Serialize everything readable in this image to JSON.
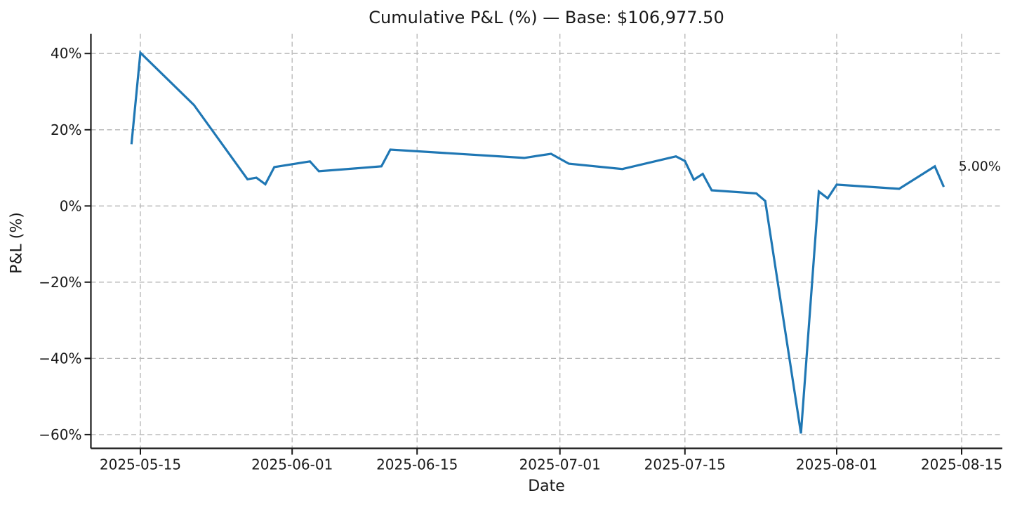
{
  "chart_data": {
    "type": "line",
    "title": "Cumulative P&L (%) — Base: $106,977.50",
    "xlabel": "Date",
    "ylabel": "P&L (%)",
    "x_tick_labels": [
      "2025-05-15",
      "2025-06-01",
      "2025-06-15",
      "2025-07-01",
      "2025-07-15",
      "2025-08-01",
      "2025-08-15"
    ],
    "y_ticks": [
      {
        "value": 40,
        "label": "40%"
      },
      {
        "value": 20,
        "label": "20%"
      },
      {
        "value": 0,
        "label": "0%"
      },
      {
        "value": -20,
        "label": "−20%"
      },
      {
        "value": -40,
        "label": "−40%"
      },
      {
        "value": -60,
        "label": "−60%"
      }
    ],
    "series": [
      {
        "name": "Cumulative P&L (%)",
        "color": "#1f77b4",
        "points": [
          [
            "2025-05-14",
            16.2
          ],
          [
            "2025-05-15",
            40.2
          ],
          [
            "2025-05-21",
            26.5
          ],
          [
            "2025-05-27",
            7.0
          ],
          [
            "2025-05-28",
            7.4
          ],
          [
            "2025-05-29",
            5.7
          ],
          [
            "2025-05-30",
            10.2
          ],
          [
            "2025-06-03",
            11.7
          ],
          [
            "2025-06-04",
            9.1
          ],
          [
            "2025-06-11",
            10.4
          ],
          [
            "2025-06-12",
            14.8
          ],
          [
            "2025-06-27",
            12.6
          ],
          [
            "2025-06-30",
            13.7
          ],
          [
            "2025-07-02",
            11.1
          ],
          [
            "2025-07-08",
            9.7
          ],
          [
            "2025-07-14",
            13.0
          ],
          [
            "2025-07-15",
            11.8
          ],
          [
            "2025-07-16",
            6.9
          ],
          [
            "2025-07-17",
            8.4
          ],
          [
            "2025-07-18",
            4.1
          ],
          [
            "2025-07-23",
            3.3
          ],
          [
            "2025-07-24",
            1.3
          ],
          [
            "2025-07-28",
            -59.7
          ],
          [
            "2025-07-30",
            3.8
          ],
          [
            "2025-07-31",
            2.0
          ],
          [
            "2025-08-01",
            5.6
          ],
          [
            "2025-08-08",
            4.5
          ],
          [
            "2025-08-12",
            10.4
          ],
          [
            "2025-08-13",
            5.0
          ]
        ]
      }
    ],
    "annotation": {
      "text": "5.00%",
      "anchors_to": "last-point"
    },
    "axis": {
      "x_range": [
        "2025-05-09",
        "2025-08-20"
      ],
      "y_range": [
        -63.6,
        45.2
      ],
      "grid": true,
      "grid_style": "dashed",
      "legend": false
    },
    "colors": {
      "line": "#1f77b4",
      "grid": "#b5b5b5",
      "text": "#1a1a1a",
      "spine": "#1a1a1a",
      "background": "#ffffff"
    }
  }
}
